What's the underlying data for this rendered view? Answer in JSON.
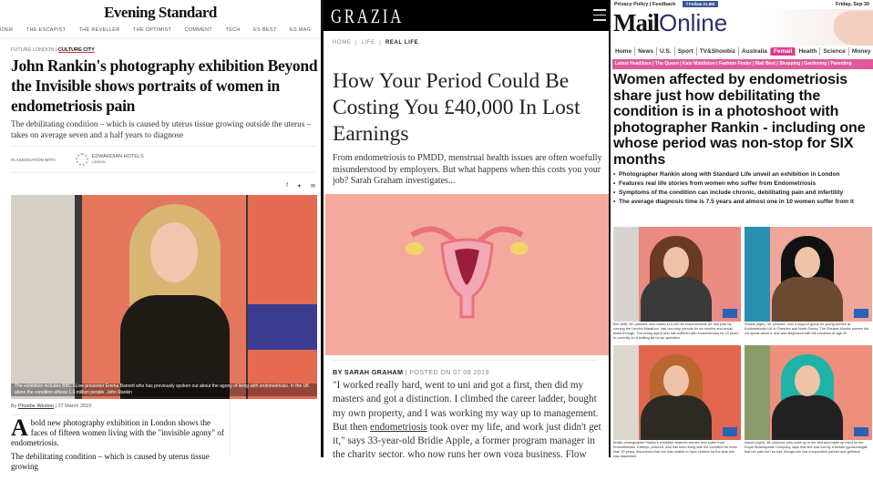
{
  "evening_standard": {
    "logo": "Evening Standard",
    "nav": [
      "IDER",
      "THE ESCAPIST",
      "THE REVELLER",
      "THE OPTIMIST",
      "COMMENT",
      "TECH",
      "ES BEST",
      "ES MAG",
      "H"
    ],
    "breadcrumb": {
      "section": "FUTURE LONDON",
      "separator": " | ",
      "current": "CULTURE CITY"
    },
    "title": "John Rankin's photography exhibition Beyond the Invisible shows portraits of women in endometriosis pain",
    "subtitle": "The debilitating condition – which is caused by uterus tissue growing outside the uterus – takes on average seven and a half years to diagnose",
    "association_label": "IN ASSOCIATION WITH",
    "sponsor": "EDWARDIAN HOTELS",
    "sponsor_sub": "LONDON",
    "share_icons": [
      "facebook-icon",
      "twitter-icon",
      "email-icon"
    ],
    "caption": "The exhibition includes BBC 5Live presenter Emma Barnett who has previously spoken out about the agony of living with endometriosis. In the UK alone the condition affects 1.5 million people",
    "caption_credit": "John Rankin",
    "byline_prefix": "By ",
    "author": "Phoebe Weston",
    "date": " | 27 March 2019",
    "drop_cap": "A",
    "body_first": "bold new photography exhibition in London shows the faces of fifteen women living with the \"invisible agony\" of endometriosis.",
    "body_second": "The debilitating condition – which is caused by uterus tissue growing"
  },
  "grazia": {
    "logo": "GRAZIA",
    "breadcrumb": [
      "HOME",
      "LIFE",
      "REAL LIFE"
    ],
    "title": "How Your Period Could Be Costing You £40,000 In Lost Earnings",
    "subtitle": "From endometriosis to PMDD, menstrual health issues are often woefully misunderstood by employers. But what happens when this costs you your job? Sarah Graham investigates...",
    "byline": "BY SARAH GRAHAM",
    "posted": " | POSTED ON 07 08 2019",
    "body_before_link": "\"I worked really hard, went to uni and got a first, then did my masters and got a distinction. I climbed the career ladder, bought my own property, and I was working my way up to management. But then ",
    "body_link": "endometriosis",
    "body_after_link": " took over my life, and work just didn't get it,\" says 33-year-old Bridie Apple, a former program manager in the charity sector, who now runs her own yoga business. Flow"
  },
  "mail_online": {
    "top_links": "Privacy Policy | Feedback",
    "follow": "f  Follow 21.9M",
    "date": "Friday, Sep 30",
    "logo_bold": "Mail",
    "logo_light": "Online",
    "nav": [
      "Home",
      "News",
      "U.S.",
      "Sport",
      "TV&Showbiz",
      "Australia",
      "Femail",
      "Health",
      "Science",
      "Money",
      "T"
    ],
    "active_nav": "Femail",
    "subnav": "Latest Headlines | The Queen | Kate Middleton | Fashion Finder | Mail Best | Shopping | Gardening | Parenting",
    "title": "Women affected by endometriosis share just how debilitating the condition is in a photoshoot with photographer Rankin - including one whose period was non-stop for SIX months",
    "bullets": [
      "Photographer Rankin along with Standard Life unveil an exhibition in London",
      "Features real life stories from women who suffer from Endometriosis",
      "Symptoms of the condition can include chronic, debilitating pain and infertility",
      "The average diagnosis time is 7.5 years and almost one in 10 women suffer from it"
    ],
    "photos": [
      {
        "caption": "Bex (left), 38, pictured, who raised £10,000 for endometriosis UK last year by running the London Marathon, had non-stop periods for six months and would bleed through. The wrong agent who has suffered with endometriosis for 10 years is currently on a waiting list for an operation",
        "wall": "#e98b80",
        "top": "#d7d4cf",
        "outfit": "#3a3a3a",
        "hair": "#6b3a22"
      },
      {
        "caption": "Shazia (right), 30, pictured, runs a support group for young women at Endometriosis UK in Cheshire and North Surrey. The Shelsah Muslim women did not speak about it, and was diagnosed with the condition at age 20",
        "wall": "#f0a699",
        "top": "#2a8fb0",
        "outfit": "#6b4a33",
        "hair": "#111111"
      },
      {
        "caption": "British photographer Rankin's exhibition features women who suffer from Endometriosis. Kathryn, pictured, who has been living with the condition for more than 20 years, discovered that she was unable to have children by the time she was diagnosed",
        "wall": "#e2664e",
        "top": "#ddd7cf",
        "outfit": "#2d2a25",
        "hair": "#b9672e"
      },
      {
        "caption": "Naomi (right), 38, pictured, who woke up in her bed and made up mind for the Royal Shakespeare Company, says that she was told by a female gynaecologist that her pain isn't so bad, though she has a supportive partner and girlfriend",
        "wall": "#ee8f7c",
        "top": "#8a9a6a",
        "outfit": "#222222",
        "hair": "#1fb3a8"
      }
    ],
    "accent": "#e2388b"
  }
}
